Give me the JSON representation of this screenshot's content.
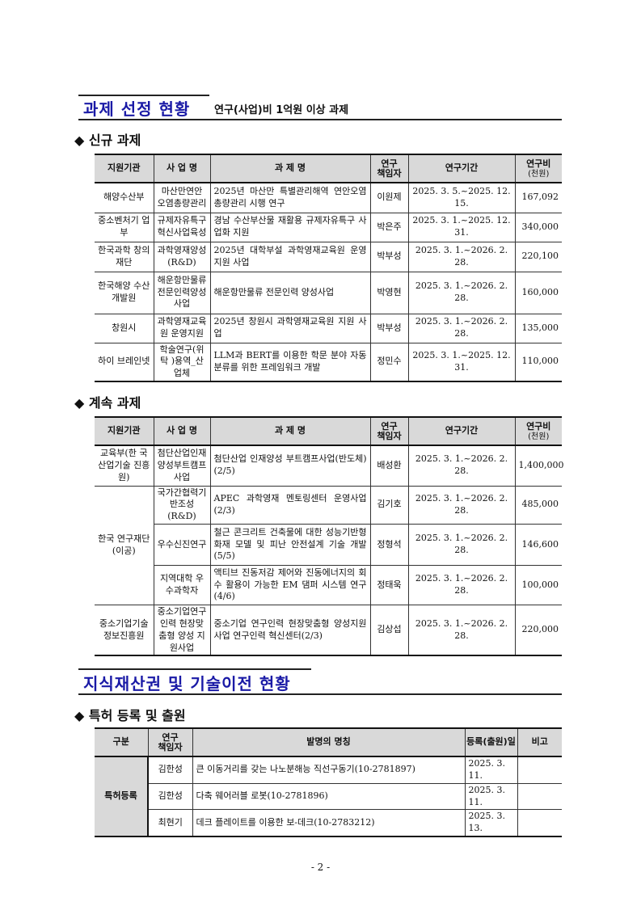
{
  "section1": {
    "title": "과제 선정 현황",
    "subtitle": "연구(사업)비 1억원 이상 과제",
    "new_heading": "◆ 신규 과제",
    "cont_heading": "◆ 계속 과제",
    "headers": [
      "지원기관",
      "사 업 명",
      "과 제 명",
      "연구\n책임자",
      "연구기간",
      "연구비",
      "(천원)"
    ],
    "new_rows": [
      {
        "agency": "해양수산부",
        "program": "마산만연안 오염총량관리",
        "project": "2025년 마산만 특별관리해역 연안오염 총량관리 시행 연구",
        "pi": "이원제",
        "period": "2025. 3. 5.~2025. 12. 15.",
        "amount": "167,092"
      },
      {
        "agency": "중소벤처기 업부",
        "program": "규제자유특구 혁신사업육성",
        "project": "경남 수산부산물 재활용 규제자유특구 사업화 지원",
        "pi": "박은주",
        "period": "2025. 3. 1.~2025. 12. 31.",
        "amount": "340,000"
      },
      {
        "agency": "한국과학 창의재단",
        "program": "과학영재양성 (R&D)",
        "project": "2025년 대학부설 과학영재교육원 운영 지원 사업",
        "pi": "박부성",
        "period": "2025. 3. 1.~2026. 2. 28.",
        "amount": "220,100"
      },
      {
        "agency": "한국해양 수산개발원",
        "program": "해운항만물류 전문인력양성 사업",
        "project": "해운항만물류 전문인력 양성사업",
        "pi": "박영현",
        "period": "2025. 3. 1.~2026. 2. 28.",
        "amount": "160,000"
      },
      {
        "agency": "창원시",
        "program": "과학영재교육 원 운영지원",
        "project": "2025년 창원시 과학영재교육원 지원 사업",
        "pi": "박부성",
        "period": "2025. 3. 1.~2026. 2. 28.",
        "amount": "135,000"
      },
      {
        "agency": "하이 브레인넷",
        "program": "학술연구(위탁 )용역_산업체",
        "project": "LLM과 BERT를 이용한 학문 분야 자동분류를 위한 프레임워크 개발",
        "pi": "정민수",
        "period": "2025. 3. 1.~2025. 12. 31.",
        "amount": "110,000"
      }
    ],
    "cont_rows": [
      {
        "agency": "교육부(한 국산업기술 진흥원)",
        "program": "첨단산업인재 양성부트캠프 사업",
        "project": "첨단산업 인재양성 부트캠프사업(반도체)(2/5)",
        "pi": "배성환",
        "period": "2025. 3. 1.~2026. 2. 28.",
        "amount": "1,400,000"
      },
      {
        "agency": "한국 연구재단 (이공)",
        "program": "국가간협력기 반조성(R&D)",
        "project": "APEC 과학영재 멘토링센터 운영사업 (2/3)",
        "pi": "김기호",
        "period": "2025. 3. 1.~2026. 2. 28.",
        "amount": "485,000"
      },
      {
        "program": "우수신진연구",
        "project": "철근 콘크리트 건축물에 대한 성능기반형 화재 모델 및 피난 안전설계 기술 개발(5/5)",
        "pi": "정형석",
        "period": "2025. 3. 1.~2026. 2. 28.",
        "amount": "146,600"
      },
      {
        "program": "지역대학 우수과학자",
        "project": "액티브 진동저감 제어와 진동에너지의 회수 활용이 가능한 EM 댐퍼 시스템 연구(4/6)",
        "pi": "정태욱",
        "period": "2025. 3. 1.~2026. 2. 28.",
        "amount": "100,000"
      },
      {
        "agency": "중소기업기술 정보진흥원",
        "program": "중소기업연구인력 현장맞춤형 양성 지원사업",
        "project": "중소기업 연구인력 현장맞춤형 양성지원사업 연구인력 혁신센터(2/3)",
        "pi": "김상섭",
        "period": "2025. 3. 1.~2026. 2. 28.",
        "amount": "220,000"
      }
    ]
  },
  "section2": {
    "title": "지식재산권 및 기술이전 현황",
    "patent_heading": "◆ 특허 등록 및 출원",
    "headers": [
      "구분",
      "연구\n책임자",
      "발명의 명칭",
      "등록(출원)일",
      "비고"
    ],
    "category": "특허등록",
    "rows": [
      {
        "pi": "김한성",
        "title": "큰 이동거리를 갖는 나노분해능 직선구동기(10-2781897)",
        "date": "2025. 3. 11.",
        "note": ""
      },
      {
        "pi": "김한성",
        "title": "다축 웨어러블 로봇(10-2781896)",
        "date": "2025. 3. 11.",
        "note": ""
      },
      {
        "pi": "최현기",
        "title": "데크 플레이트를 이용한 보-데크(10-2783212)",
        "date": "2025. 3. 13.",
        "note": ""
      }
    ]
  },
  "page_number": "- 2 -"
}
